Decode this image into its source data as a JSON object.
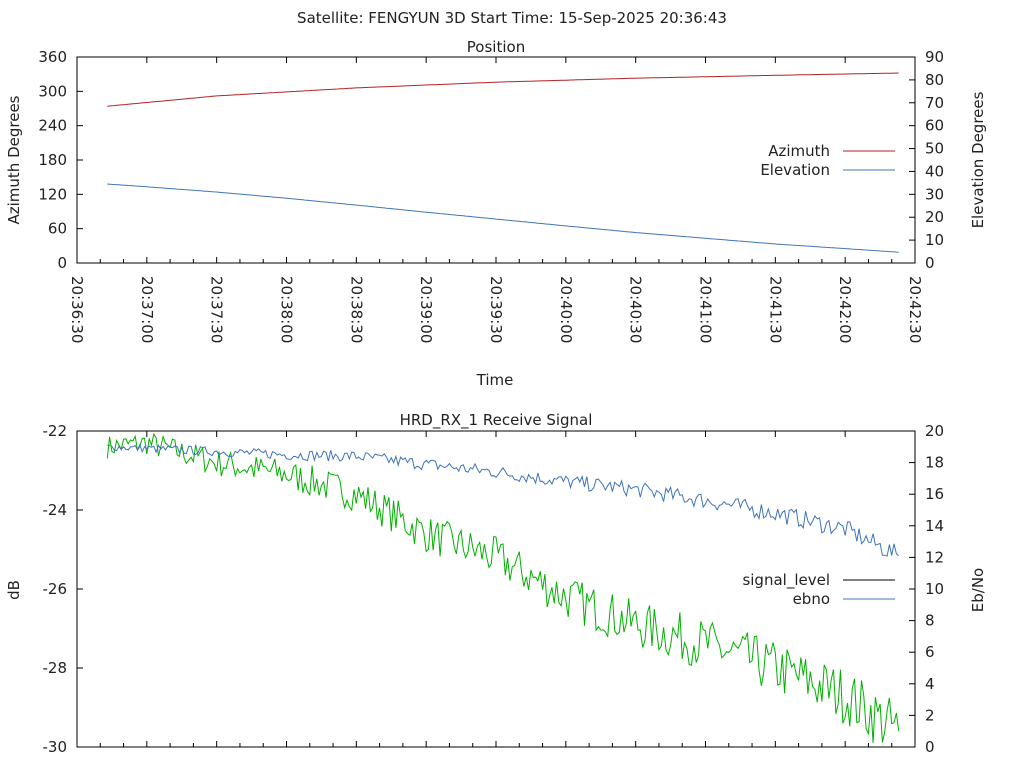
{
  "header": {
    "text": "Satellite: FENGYUN 3D    Start Time: 15-Sep-2025 20:36:43"
  },
  "chart_data": [
    {
      "type": "line",
      "title": "Position",
      "xlabel": "Time",
      "ylabel": "Azimuth Degrees",
      "y2label": "Elevation Degrees",
      "x_ticks": [
        "20:36:30",
        "20:37:00",
        "20:37:30",
        "20:38:00",
        "20:38:30",
        "20:39:00",
        "20:39:30",
        "20:40:00",
        "20:40:30",
        "20:41:00",
        "20:41:30",
        "20:42:00",
        "20:42:30"
      ],
      "xlim_seconds": [
        0,
        360
      ],
      "ylim": [
        0,
        360
      ],
      "yticks": [
        0,
        60,
        120,
        180,
        240,
        300,
        360
      ],
      "y2lim": [
        0,
        90
      ],
      "y2ticks": [
        0,
        10,
        20,
        30,
        40,
        50,
        60,
        70,
        80,
        90
      ],
      "legend_position": "right",
      "series": [
        {
          "name": "Azimuth",
          "axis": "y",
          "color": "#b22222",
          "x": [
            "20:36:43",
            "20:37:30",
            "20:38:30",
            "20:39:30",
            "20:40:30",
            "20:41:30",
            "20:42:23"
          ],
          "values": [
            274,
            292,
            306,
            316,
            323,
            328,
            332
          ]
        },
        {
          "name": "Elevation",
          "axis": "y2",
          "color": "#3f74b8",
          "x": [
            "20:36:43",
            "20:37:00",
            "20:37:30",
            "20:38:00",
            "20:38:30",
            "20:39:00",
            "20:39:30",
            "20:40:00",
            "20:40:30",
            "20:41:00",
            "20:41:30",
            "20:42:00",
            "20:42:23"
          ],
          "values": [
            34.5,
            33.3,
            31.0,
            28.3,
            25.3,
            22.2,
            19.2,
            16.2,
            13.3,
            10.8,
            8.3,
            6.3,
            4.7
          ]
        }
      ]
    },
    {
      "type": "line",
      "title": "HRD_RX_1 Receive Signal",
      "xlabel": "",
      "ylabel": "dB",
      "y2label": "Eb/No",
      "xlim_seconds": [
        0,
        360
      ],
      "ylim": [
        -30,
        -22
      ],
      "yticks": [
        -30,
        -28,
        -26,
        -24,
        -22
      ],
      "y2lim": [
        0,
        20
      ],
      "y2ticks": [
        0,
        2,
        4,
        6,
        8,
        10,
        12,
        14,
        16,
        18,
        20
      ],
      "legend_position": "right",
      "series": [
        {
          "name": "signal_level",
          "axis": "y",
          "color": "#00b000",
          "x": [
            "20:36:43",
            "20:37:00",
            "20:37:30",
            "20:38:00",
            "20:38:30",
            "20:39:00",
            "20:39:30",
            "20:40:00",
            "20:40:30",
            "20:41:00",
            "20:41:30",
            "20:42:00",
            "20:42:23"
          ],
          "values": [
            -22.4,
            -22.3,
            -22.8,
            -23.1,
            -23.6,
            -24.6,
            -25.2,
            -26.2,
            -26.9,
            -27.4,
            -28.0,
            -28.7,
            -29.6
          ]
        },
        {
          "name": "ebno",
          "axis": "y2",
          "color": "#3f74b8",
          "x": [
            "20:36:43",
            "20:37:00",
            "20:37:30",
            "20:38:00",
            "20:38:30",
            "20:39:00",
            "20:39:30",
            "20:40:00",
            "20:40:30",
            "20:41:00",
            "20:41:30",
            "20:42:00",
            "20:42:23"
          ],
          "values": [
            19.0,
            18.9,
            18.7,
            18.5,
            18.4,
            17.9,
            17.4,
            16.8,
            16.3,
            15.6,
            14.8,
            13.8,
            12.1
          ]
        }
      ]
    }
  ]
}
